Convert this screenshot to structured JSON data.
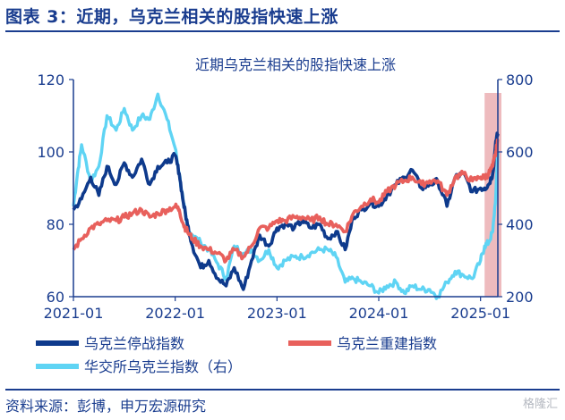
{
  "figure_title": "图表 3：近期，乌克兰相关的股指快速上涨",
  "source_text": "资料来源：彭博，申万宏源研究",
  "watermark": "格隆汇",
  "colors": {
    "navy": "#1a3d8f",
    "stop_index": "#0e3a8c",
    "rebuild_index": "#e8605c",
    "ux_index": "#5fd4f4",
    "shade": "#e8a4a8"
  },
  "chart_data": {
    "type": "line",
    "title": "近期乌克兰相关的股指快速上涨",
    "xlabel": "",
    "ylabel": "",
    "y_left": {
      "lim": [
        60,
        120
      ],
      "ticks": [
        "60",
        "80",
        "100",
        "120"
      ]
    },
    "y_right": {
      "lim": [
        200,
        800
      ],
      "ticks": [
        "200",
        "400",
        "600",
        "800"
      ]
    },
    "x_ticks": [
      "2021-01",
      "2022-01",
      "2023-01",
      "2024-01",
      "2025-01"
    ],
    "x_range": [
      2021.0,
      2025.17
    ],
    "shaded_region": [
      2025.04,
      2025.17
    ],
    "series": [
      {
        "name": "乌克兰停战指数",
        "axis": "left",
        "color": "#0e3a8c",
        "x": [
          2021.0,
          2021.08,
          2021.17,
          2021.25,
          2021.33,
          2021.42,
          2021.5,
          2021.58,
          2021.67,
          2021.75,
          2021.83,
          2021.92,
          2022.0,
          2022.04,
          2022.08,
          2022.12,
          2022.17,
          2022.25,
          2022.33,
          2022.42,
          2022.5,
          2022.58,
          2022.67,
          2022.75,
          2022.83,
          2022.92,
          2023.0,
          2023.08,
          2023.17,
          2023.25,
          2023.33,
          2023.42,
          2023.5,
          2023.58,
          2023.67,
          2023.75,
          2023.83,
          2023.92,
          2024.0,
          2024.08,
          2024.17,
          2024.25,
          2024.33,
          2024.42,
          2024.5,
          2024.58,
          2024.67,
          2024.75,
          2024.83,
          2024.92,
          2025.0,
          2025.04,
          2025.08,
          2025.12,
          2025.15,
          2025.17
        ],
        "values": [
          84,
          87,
          93,
          88,
          96,
          91,
          97,
          93,
          98,
          91,
          96,
          97,
          99,
          94,
          86,
          80,
          74,
          68,
          70,
          65,
          63,
          68,
          62,
          70,
          77,
          74,
          79,
          80,
          79,
          81,
          79,
          80,
          76,
          78,
          73,
          82,
          84,
          86,
          85,
          88,
          91,
          93,
          95,
          90,
          91,
          92,
          85,
          93,
          94,
          89,
          90,
          90,
          91,
          94,
          103,
          105
        ]
      },
      {
        "name": "乌克兰重建指数",
        "axis": "left",
        "color": "#e8605c",
        "x": [
          2021.0,
          2021.08,
          2021.17,
          2021.25,
          2021.33,
          2021.42,
          2021.5,
          2021.58,
          2021.67,
          2021.75,
          2021.83,
          2021.92,
          2022.0,
          2022.04,
          2022.08,
          2022.12,
          2022.17,
          2022.25,
          2022.33,
          2022.42,
          2022.5,
          2022.58,
          2022.67,
          2022.75,
          2022.83,
          2022.92,
          2023.0,
          2023.08,
          2023.17,
          2023.25,
          2023.33,
          2023.42,
          2023.5,
          2023.58,
          2023.67,
          2023.75,
          2023.83,
          2023.92,
          2024.0,
          2024.08,
          2024.17,
          2024.25,
          2024.33,
          2024.42,
          2024.5,
          2024.58,
          2024.67,
          2024.75,
          2024.83,
          2024.92,
          2025.0,
          2025.04,
          2025.08,
          2025.12,
          2025.15,
          2025.17
        ],
        "values": [
          73,
          76,
          79,
          80,
          81,
          81,
          82,
          83,
          84,
          82,
          83,
          84,
          85,
          84,
          80,
          78,
          76,
          74,
          73,
          72,
          70,
          73,
          71,
          74,
          79,
          79,
          81,
          81,
          82,
          82,
          81,
          82,
          80,
          80,
          78,
          83,
          85,
          87,
          86,
          89,
          91,
          92,
          93,
          91,
          92,
          92,
          88,
          93,
          94,
          92,
          93,
          93,
          94,
          96,
          100,
          103
        ]
      },
      {
        "name": "华交所乌克兰指数（右）",
        "axis": "right",
        "color": "#5fd4f4",
        "x": [
          2021.0,
          2021.04,
          2021.08,
          2021.17,
          2021.25,
          2021.33,
          2021.42,
          2021.5,
          2021.58,
          2021.67,
          2021.75,
          2021.83,
          2021.92,
          2022.0,
          2022.04,
          2022.08,
          2022.12,
          2022.17,
          2022.25,
          2022.33,
          2022.42,
          2022.5,
          2022.58,
          2022.67,
          2022.75,
          2022.83,
          2022.92,
          2023.0,
          2023.08,
          2023.17,
          2023.25,
          2023.33,
          2023.42,
          2023.5,
          2023.58,
          2023.67,
          2023.75,
          2023.83,
          2023.92,
          2024.0,
          2024.08,
          2024.17,
          2024.25,
          2024.33,
          2024.42,
          2024.5,
          2024.58,
          2024.67,
          2024.75,
          2024.83,
          2024.92,
          2025.0,
          2025.04,
          2025.08,
          2025.12,
          2025.15,
          2025.17
        ],
        "values": [
          450,
          540,
          620,
          520,
          560,
          700,
          660,
          720,
          660,
          700,
          690,
          760,
          690,
          610,
          540,
          460,
          390,
          370,
          350,
          330,
          290,
          250,
          340,
          320,
          330,
          300,
          330,
          280,
          300,
          310,
          310,
          320,
          330,
          330,
          310,
          240,
          250,
          240,
          230,
          210,
          230,
          240,
          210,
          230,
          220,
          220,
          200,
          240,
          270,
          260,
          250,
          300,
          340,
          350,
          380,
          480,
          600
        ]
      }
    ]
  }
}
